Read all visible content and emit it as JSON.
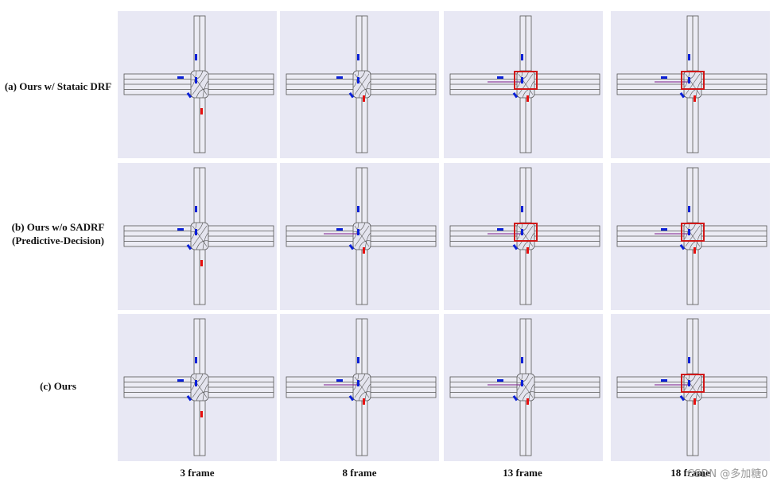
{
  "rows": [
    {
      "label_lines": [
        "(a) Ours w/ Stataic DRF"
      ]
    },
    {
      "label_lines": [
        "(b) Ours w/o SADRF",
        "(Predictive-Decision)"
      ]
    },
    {
      "label_lines": [
        "(c) Ours"
      ]
    }
  ],
  "columns": [
    "3 frame",
    "8 frame",
    "13 frame",
    "18 frame"
  ],
  "legend_colors": {
    "ego_vehicle": "#e81010",
    "other_vehicle": "#0a20d8",
    "highlight_box": "#d01818",
    "trajectory": "#7a1a8a",
    "panel_background": "#e8e8f4"
  },
  "panels": [
    {
      "row": 0,
      "col": 0,
      "highlight": false,
      "trajectory": false
    },
    {
      "row": 0,
      "col": 1,
      "highlight": false,
      "trajectory": false
    },
    {
      "row": 0,
      "col": 2,
      "highlight": true,
      "trajectory": true
    },
    {
      "row": 0,
      "col": 3,
      "highlight": true,
      "trajectory": true
    },
    {
      "row": 1,
      "col": 0,
      "highlight": false,
      "trajectory": false
    },
    {
      "row": 1,
      "col": 1,
      "highlight": false,
      "trajectory": true
    },
    {
      "row": 1,
      "col": 2,
      "highlight": true,
      "trajectory": true
    },
    {
      "row": 1,
      "col": 3,
      "highlight": true,
      "trajectory": true
    },
    {
      "row": 2,
      "col": 0,
      "highlight": false,
      "trajectory": false
    },
    {
      "row": 2,
      "col": 1,
      "highlight": false,
      "trajectory": true
    },
    {
      "row": 2,
      "col": 2,
      "highlight": false,
      "trajectory": true
    },
    {
      "row": 2,
      "col": 3,
      "highlight": true,
      "trajectory": true
    }
  ],
  "watermark": "CSDN @多加糖0"
}
